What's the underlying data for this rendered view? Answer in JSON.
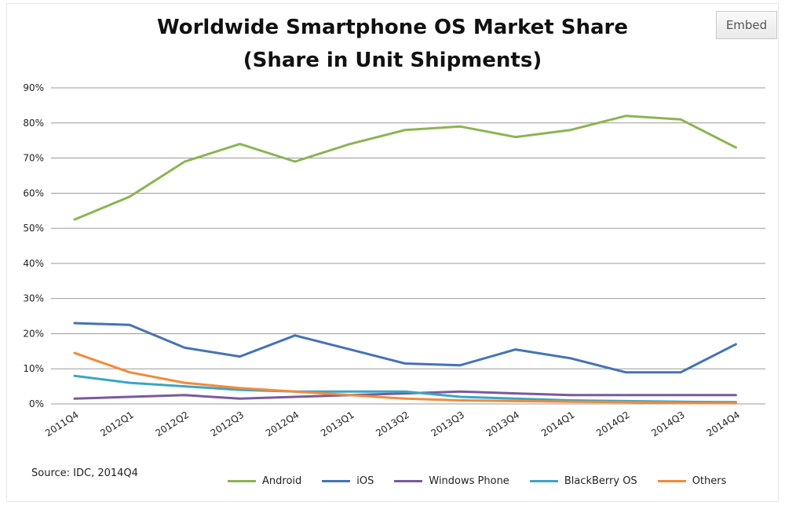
{
  "chart_data": {
    "type": "line",
    "title": "Worldwide Smartphone OS Market Share",
    "subtitle": "(Share in Unit Shipments)",
    "x": [
      "2011Q4",
      "2012Q1",
      "2012Q2",
      "2012Q3",
      "2012Q4",
      "2013Q1",
      "2013Q2",
      "2013Q3",
      "2013Q4",
      "2014Q1",
      "2014Q2",
      "2014Q3",
      "2014Q4"
    ],
    "ylim": [
      0,
      90
    ],
    "yticks": [
      "0%",
      "10%",
      "20%",
      "30%",
      "40%",
      "50%",
      "60%",
      "70%",
      "80%",
      "90%"
    ],
    "grid": true,
    "legend_position": "bottom",
    "series": [
      {
        "name": "Android",
        "color": "#8cb454",
        "values": [
          52.5,
          59,
          69,
          74,
          69,
          74,
          78,
          79,
          76,
          78,
          82,
          81,
          73
        ]
      },
      {
        "name": "iOS",
        "color": "#4472b6",
        "values": [
          23,
          22.5,
          16,
          13.5,
          19.5,
          15.5,
          11.5,
          11,
          15.5,
          13,
          9,
          9,
          17
        ]
      },
      {
        "name": "Windows Phone",
        "color": "#7a5a9c",
        "values": [
          1.5,
          2,
          2.5,
          1.5,
          2,
          2.5,
          3,
          3.5,
          3,
          2.5,
          2.5,
          2.5,
          2.5
        ]
      },
      {
        "name": "BlackBerry OS",
        "color": "#3aa6c4",
        "values": [
          8,
          6,
          5,
          4,
          3.5,
          3.5,
          3.5,
          2,
          1.5,
          1,
          0.8,
          0.6,
          0.5
        ]
      },
      {
        "name": "Others",
        "color": "#f28a3a",
        "values": [
          14.5,
          9,
          6,
          4.5,
          3.5,
          2.5,
          1.5,
          1,
          0.8,
          0.6,
          0.5,
          0.3,
          0.2
        ]
      }
    ]
  },
  "embed_label": "Embed",
  "source": "Source: IDC, 2014Q4"
}
